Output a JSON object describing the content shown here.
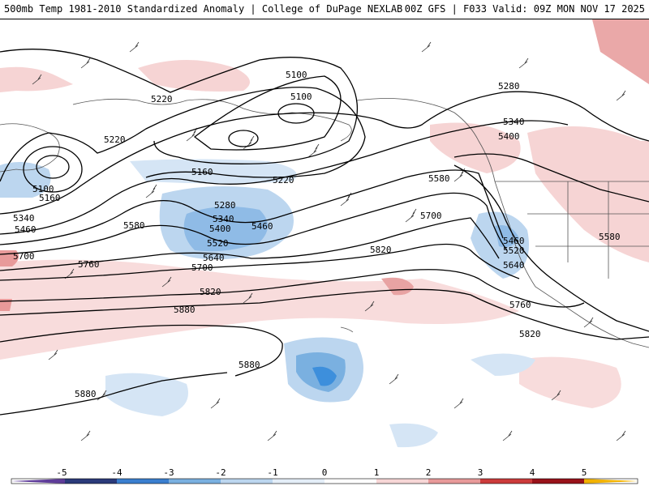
{
  "header": {
    "left_title": "500mb Temp 1981-2010 Standardized Anomaly | College of DuPage NEXLAB",
    "right_title": "00Z GFS | F033 Valid: 09Z MON NOV 17 2025"
  },
  "colorbar": {
    "ticks": [
      "-5",
      "-4",
      "-3",
      "-2",
      "-1",
      "0",
      "1",
      "2",
      "3",
      "4",
      "5"
    ],
    "colors": [
      "#5e3c99",
      "#2b3a7a",
      "#3a7fcf",
      "#7ab0e0",
      "#bcd6ef",
      "#e4eef8",
      "#ffffff",
      "#f7d6d6",
      "#e89a9a",
      "#cc3b3b",
      "#99121a",
      "#f2b200"
    ]
  },
  "contours": {
    "labels": [
      "5100",
      "5100",
      "5100",
      "5160",
      "5160",
      "5220",
      "5220",
      "5220",
      "5280",
      "5280",
      "5340",
      "5340",
      "5340",
      "5400",
      "5400",
      "5460",
      "5460",
      "5460",
      "5520",
      "5520",
      "5580",
      "5580",
      "5580",
      "5640",
      "5640",
      "5700",
      "5700",
      "5700",
      "5760",
      "5760",
      "5820",
      "5820",
      "5820",
      "5880",
      "5880",
      "5880"
    ]
  },
  "colors": {
    "warm_anomaly": "#f4c9c9",
    "cold_anomaly": "#a9cbee",
    "strong_cold": "#3d8fdc"
  }
}
